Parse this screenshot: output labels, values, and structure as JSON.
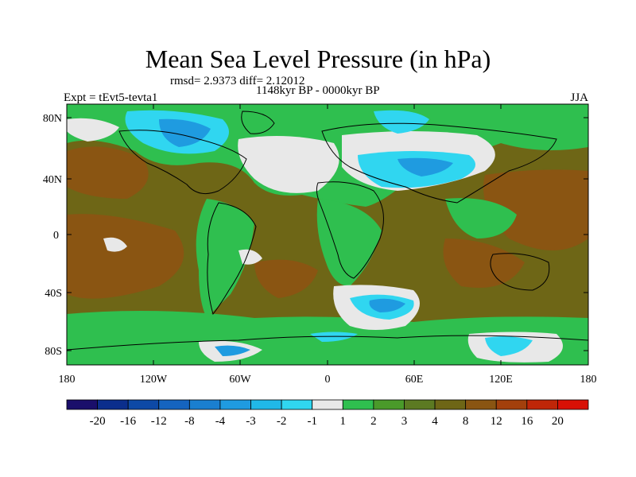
{
  "title": "Mean Sea Level Pressure (in hPa)",
  "stats": "rmsd= 2.9373 diff= 2.12012",
  "period": "1148kyr BP - 0000kyr BP",
  "experiment": "Expt = tEvt5-tevta1",
  "season": "JJA",
  "axes": {
    "lat_ticks": [
      "80N",
      "40N",
      "0",
      "40S",
      "80S"
    ],
    "lon_ticks": [
      "180",
      "120W",
      "60W",
      "0",
      "60E",
      "120E",
      "180"
    ]
  },
  "colorbar": {
    "labels": [
      "-20",
      "-16",
      "-12",
      "-8",
      "-4",
      "-3",
      "-2",
      "-1",
      "1",
      "2",
      "3",
      "4",
      "8",
      "12",
      "16",
      "20"
    ],
    "colors": [
      "#1a0f6b",
      "#0b2e8c",
      "#0d49a6",
      "#1564bf",
      "#1a7fd0",
      "#1f9be0",
      "#20b8e8",
      "#30d6f0",
      "#e8e8e8",
      "#2fbf4f",
      "#4a9a2a",
      "#5c7a22",
      "#6e6616",
      "#8a5512",
      "#a3400c",
      "#bf2608",
      "#d81005"
    ]
  },
  "colors": {
    "ocean_base": "#6e6616",
    "land_base": "#2fbf4f",
    "neutral": "#e8e8e8",
    "neg_light": "#30d6f0",
    "neg_mid": "#1f9be0",
    "neg_dark": "#1564bf",
    "pos_mid": "#5c7a22",
    "pos_strong": "#8a5512",
    "coast": "#000000"
  }
}
